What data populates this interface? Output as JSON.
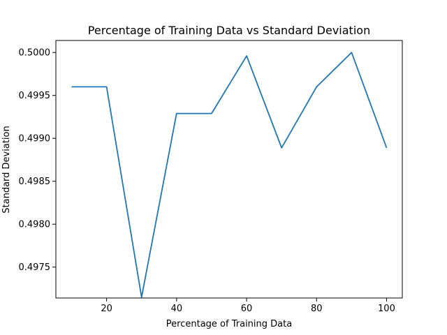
{
  "chart_data": {
    "type": "line",
    "title": "Percentage of Training Data vs Standard Deviation",
    "xlabel": "Percentage of Training Data",
    "ylabel": "Standard Deviation",
    "xlim": [
      5.5,
      104.5
    ],
    "ylim": [
      0.49714,
      0.50014
    ],
    "xticks": [
      20,
      40,
      60,
      80,
      100
    ],
    "yticks": [
      0.4975,
      0.498,
      0.4985,
      0.499,
      0.4995,
      0.5
    ],
    "ytick_labels": [
      "0.4975",
      "0.4980",
      "0.4985",
      "0.4990",
      "0.4995",
      "0.5000"
    ],
    "grid": false,
    "series": [
      {
        "color": "#1f77b4",
        "x": [
          10,
          20,
          30,
          40,
          50,
          60,
          70,
          80,
          90,
          100
        ],
        "y": [
          0.4996,
          0.4996,
          0.49715,
          0.49929,
          0.49929,
          0.49996,
          0.49889,
          0.4996,
          0.5,
          0.49889
        ]
      }
    ]
  }
}
